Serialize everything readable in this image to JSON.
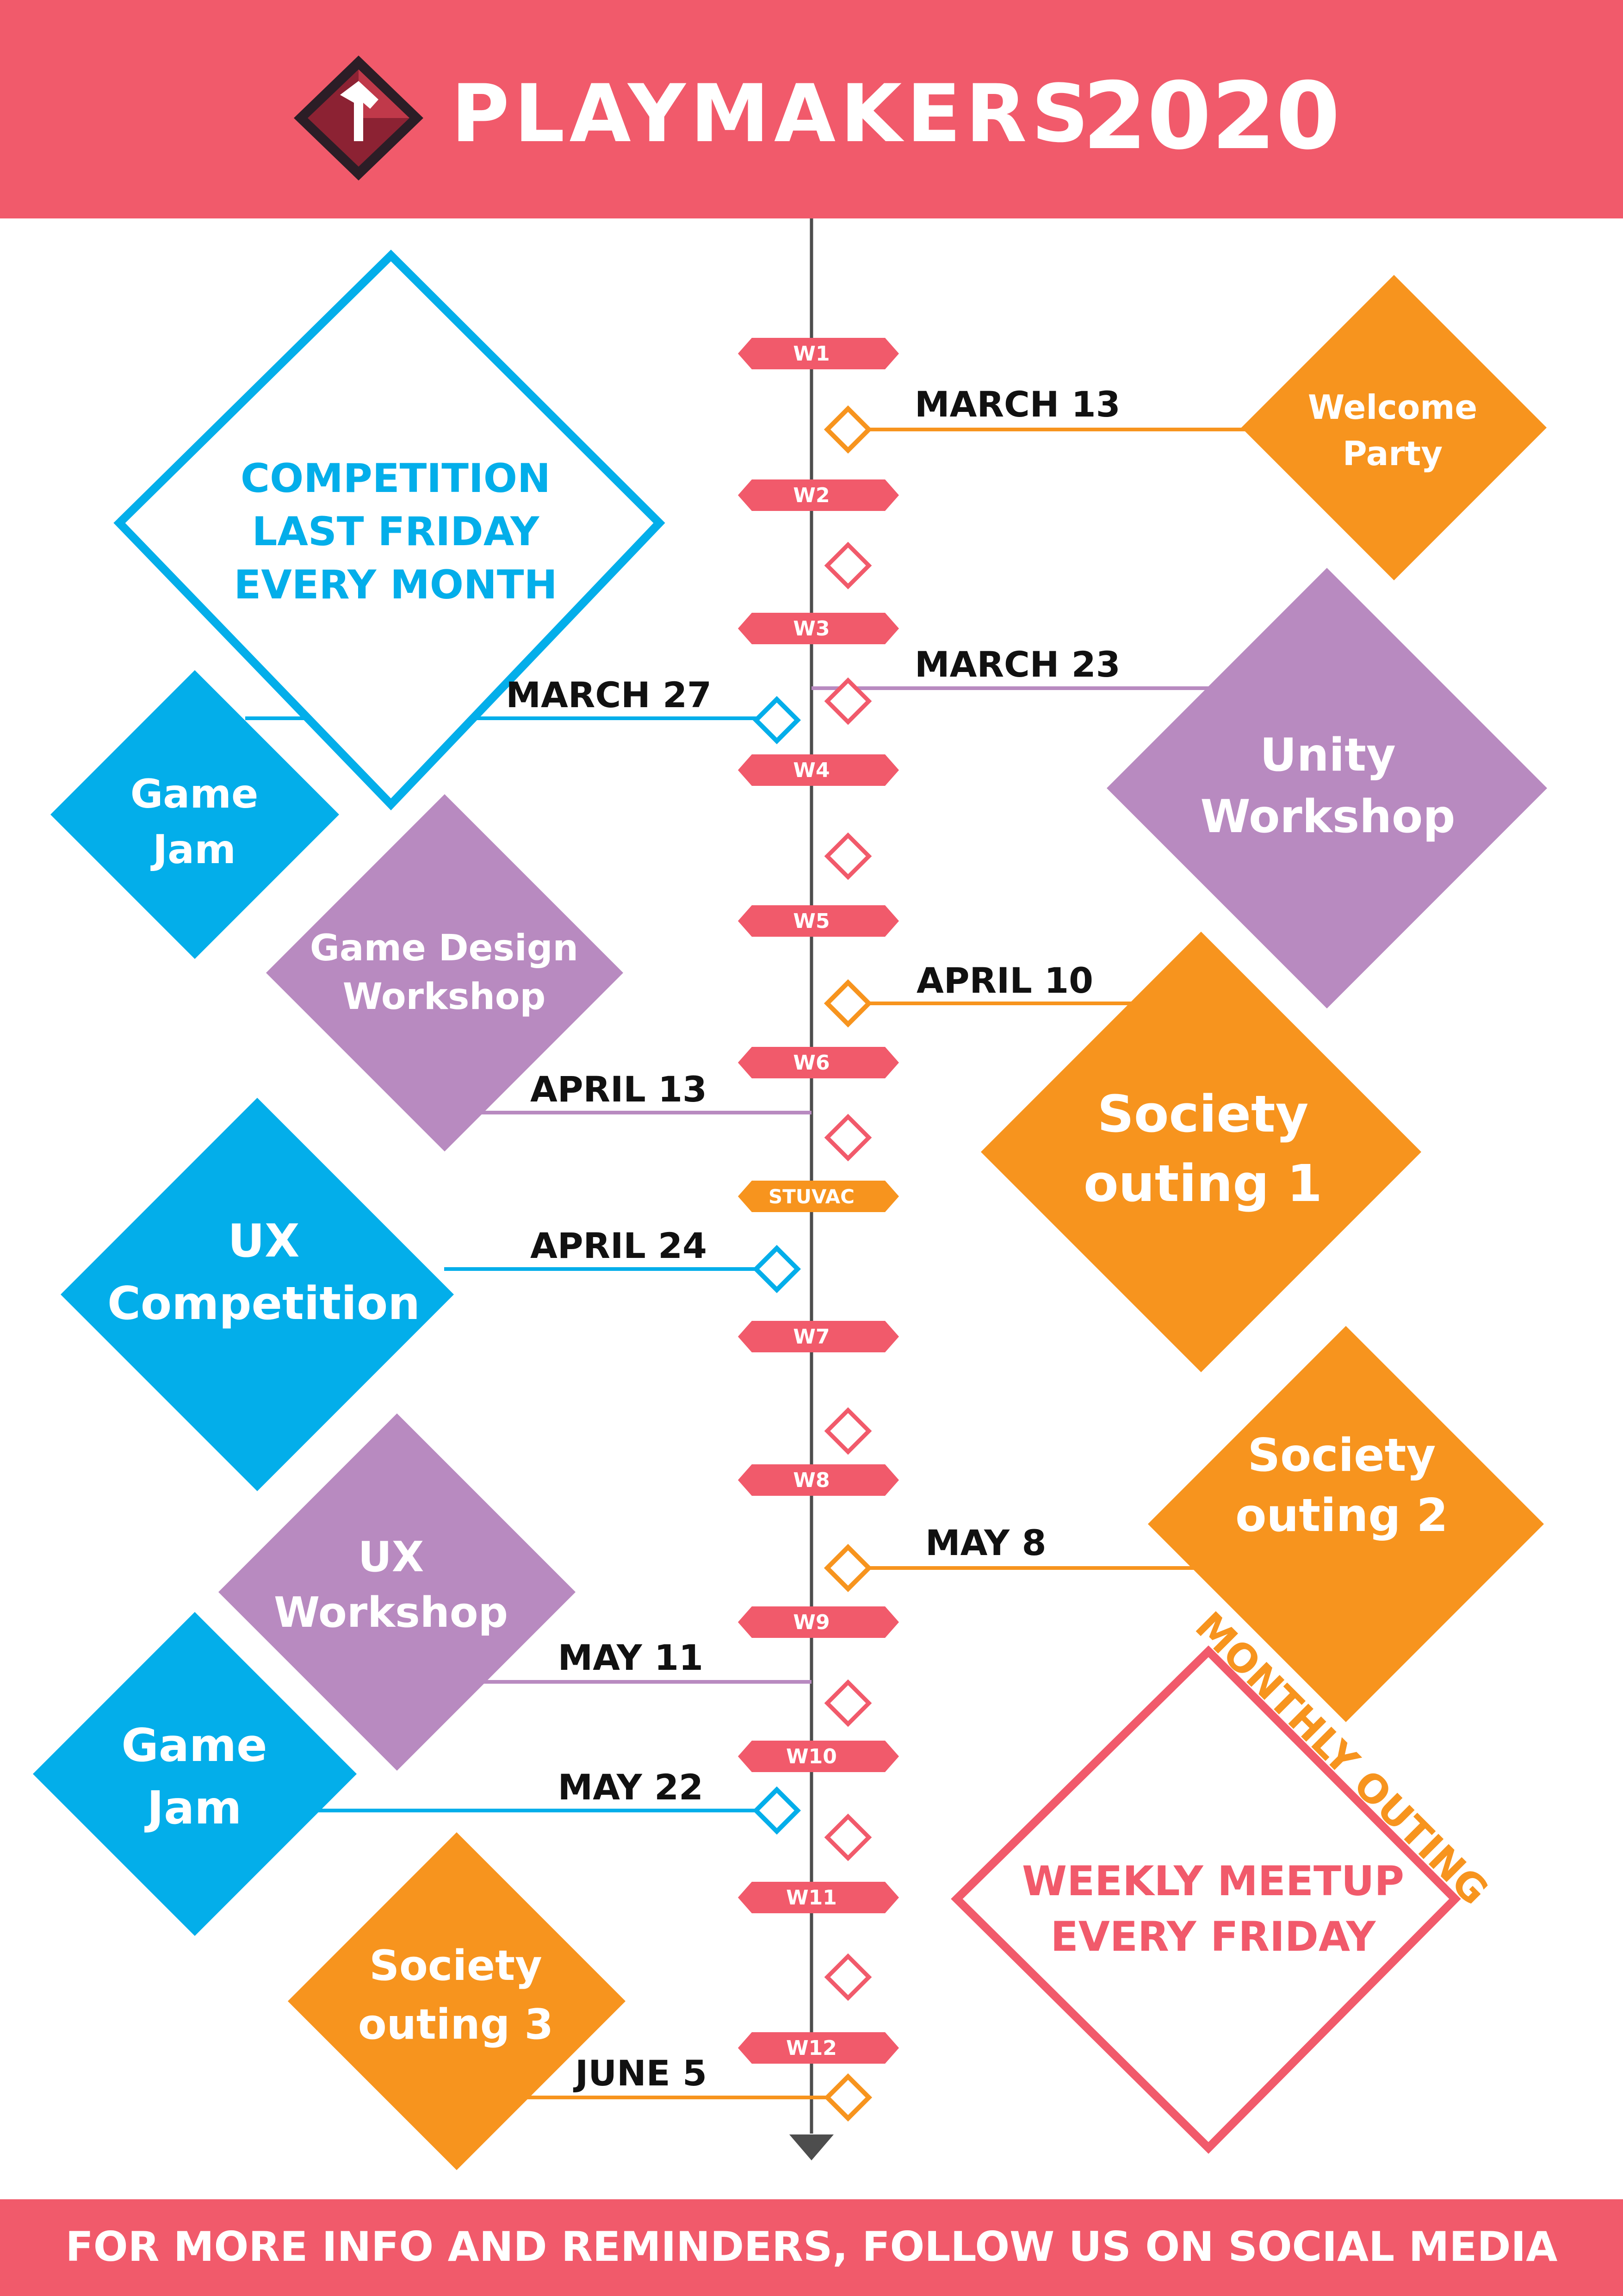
{
  "colors": {
    "header": "#f15a6b",
    "blue": "#03aeea",
    "orange": "#f7941e",
    "purple": "#b88ac0",
    "pink": "#f15a6b",
    "axis": "#4d4d4d",
    "white": "#ffffff",
    "black": "#111111"
  },
  "header": {
    "brand": "PLAYMAKERS",
    "year": "2020",
    "logo_icon": "playmakers-diamond-logo"
  },
  "footer": {
    "text": "FOR MORE INFO AND REMINDERS, FOLLOW US ON SOCIAL MEDIA"
  },
  "weeks": [
    "W1",
    "W2",
    "W3",
    "W4",
    "W5",
    "W6",
    "STUVAC",
    "W7",
    "W8",
    "W9",
    "W10",
    "W11",
    "W12"
  ],
  "events": [
    {
      "label": [
        "Welcome",
        "Party"
      ],
      "date": "MARCH 13",
      "type": "social"
    },
    {
      "label": [
        "Unity",
        "Workshop"
      ],
      "date": "MARCH 23",
      "type": "workshop"
    },
    {
      "label": [
        "Game",
        "Jam"
      ],
      "date": "MARCH 27",
      "type": "competition"
    },
    {
      "label": [
        "Society",
        "outing 1"
      ],
      "date": "APRIL 10",
      "type": "social"
    },
    {
      "label": [
        "Game Design",
        "Workshop"
      ],
      "date": "APRIL 13",
      "type": "workshop"
    },
    {
      "label": [
        "UX",
        "Competition"
      ],
      "date": "APRIL 24",
      "type": "competition"
    },
    {
      "label": [
        "Society",
        "outing 2"
      ],
      "date": "MAY 8",
      "type": "social"
    },
    {
      "label": [
        "UX",
        "Workshop"
      ],
      "date": "MAY 11",
      "type": "workshop"
    },
    {
      "label": [
        "Game",
        "Jam"
      ],
      "date": "MAY 22",
      "type": "competition"
    },
    {
      "label": [
        "Society",
        "outing 3"
      ],
      "date": "JUNE 5",
      "type": "social"
    }
  ],
  "callouts": {
    "competition": [
      "COMPETITION",
      "LAST FRIDAY",
      "EVERY MONTH"
    ],
    "weekly": [
      "WEEKLY MEETUP",
      "EVERY FRIDAY"
    ],
    "monthly": "MONTHLY OUTING"
  }
}
